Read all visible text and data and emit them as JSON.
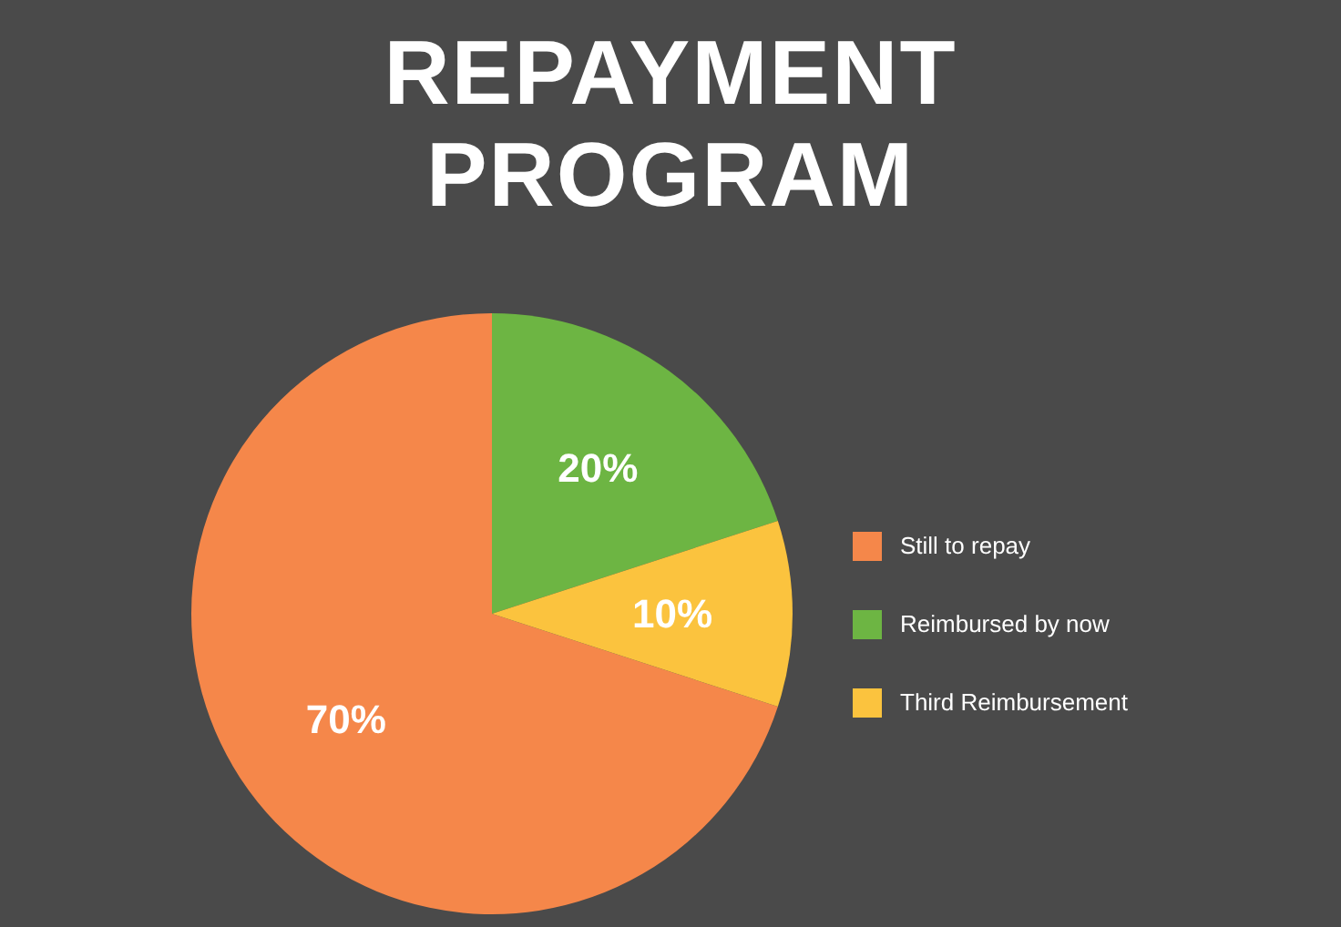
{
  "chart_data": {
    "type": "pie",
    "title": "REPAYMENT\nPROGRAM",
    "categories": [
      "Still to repay",
      "Reimbursed by now",
      "Third Reimbursement"
    ],
    "values": [
      70,
      20,
      10
    ],
    "colors": [
      "#f5874a",
      "#6db543",
      "#fbc33e"
    ],
    "value_labels": [
      "70%",
      "20%",
      "10%"
    ],
    "legend": "right"
  }
}
